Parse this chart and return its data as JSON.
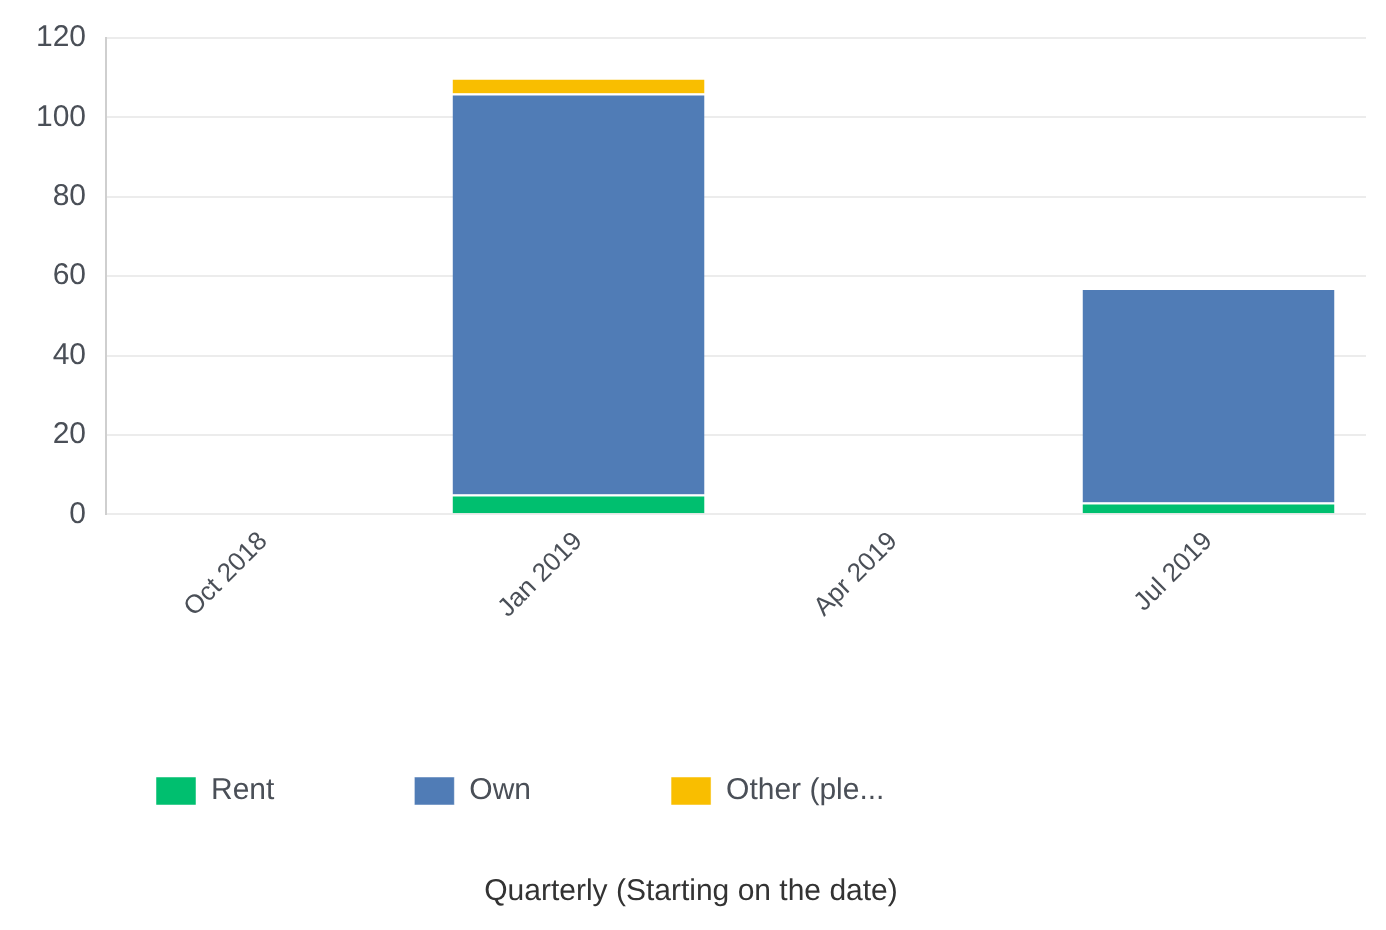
{
  "chart_data": {
    "type": "bar",
    "stacked": true,
    "annotations": [
      "Quarterly (Starting on the date)"
    ],
    "categories": [
      "Oct 2018",
      "Jan 2019",
      "Apr 2019",
      "Jul 2019"
    ],
    "series": [
      {
        "name": "Rent",
        "color": "#00bf6f",
        "values": [
          0,
          5,
          0,
          3
        ]
      },
      {
        "name": "Own",
        "color": "#507cb6",
        "values": [
          0,
          101,
          0,
          54
        ]
      },
      {
        "name": "Other (ple...",
        "color": "#f9be00",
        "values": [
          0,
          4,
          0,
          0
        ]
      }
    ],
    "ylim": [
      0,
      120
    ],
    "yticks": [
      0,
      20,
      40,
      60,
      80,
      100,
      120
    ],
    "grid": "y",
    "legend": "bottom"
  }
}
